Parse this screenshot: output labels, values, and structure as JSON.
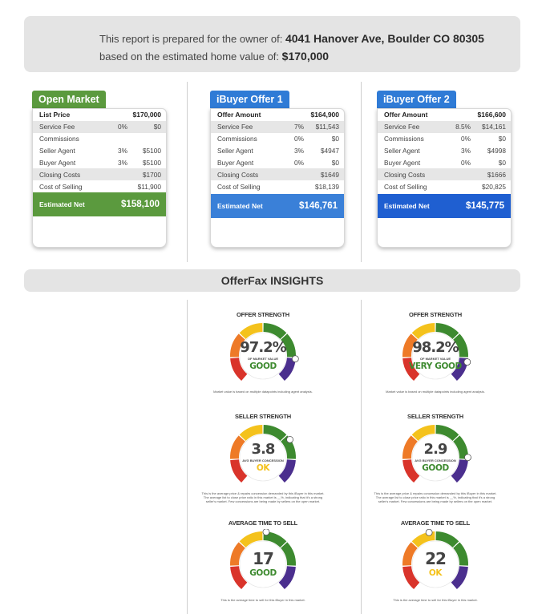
{
  "header": {
    "prepared_prefix": "This report is prepared for the owner of:",
    "address": "4041 Hanover Ave, Boulder CO 80305",
    "value_prefix": "based on the estimated home value of:",
    "home_value": "$170,000"
  },
  "colors": {
    "green": "#5b9a3e",
    "blue_tab": "#2f7bd6",
    "blue_net1": "#3a80d8",
    "blue_net2": "#1f5fd1",
    "gauge_red": "#d9342b",
    "gauge_orange": "#ee7a27",
    "gauge_yellow": "#f4c21c",
    "gauge_green": "#3d8a2f",
    "gauge_purple": "#4b2f8e"
  },
  "cards": [
    {
      "tab": "Open Market",
      "rows": [
        {
          "label": "List Price",
          "pct": "",
          "amount": "$170,000",
          "bold": true,
          "shade": false
        },
        {
          "label": "Service Fee",
          "pct": "0%",
          "amount": "$0",
          "bold": false,
          "shade": true
        },
        {
          "label": "Commissions",
          "pct": "",
          "amount": "",
          "bold": false,
          "shade": false
        },
        {
          "label": "Seller Agent",
          "pct": "3%",
          "amount": "$5100",
          "bold": false,
          "shade": false
        },
        {
          "label": "Buyer Agent",
          "pct": "3%",
          "amount": "$5100",
          "bold": false,
          "shade": false
        },
        {
          "label": "Closing Costs",
          "pct": "",
          "amount": "$1700",
          "bold": false,
          "shade": true
        },
        {
          "label": "Cost of Selling",
          "pct": "",
          "amount": "$11,900",
          "bold": false,
          "shade": false
        }
      ],
      "net_label": "Estimated Net",
      "net_amount": "$158,100"
    },
    {
      "tab": "iBuyer Offer 1",
      "rows": [
        {
          "label": "Offer Amount",
          "pct": "",
          "amount": "$164,900",
          "bold": true,
          "shade": false
        },
        {
          "label": "Service Fee",
          "pct": "7%",
          "amount": "$11,543",
          "bold": false,
          "shade": true
        },
        {
          "label": "Commissions",
          "pct": "0%",
          "amount": "$0",
          "bold": false,
          "shade": false
        },
        {
          "label": "Seller Agent",
          "pct": "3%",
          "amount": "$4947",
          "bold": false,
          "shade": false
        },
        {
          "label": "Buyer Agent",
          "pct": "0%",
          "amount": "$0",
          "bold": false,
          "shade": false
        },
        {
          "label": "Closing Costs",
          "pct": "",
          "amount": "$1649",
          "bold": false,
          "shade": true
        },
        {
          "label": "Cost of Selling",
          "pct": "",
          "amount": "$18,139",
          "bold": false,
          "shade": false
        }
      ],
      "net_label": "Estimated Net",
      "net_amount": "$146,761"
    },
    {
      "tab": "iBuyer Offer 2",
      "rows": [
        {
          "label": "Offer Amount",
          "pct": "",
          "amount": "$166,600",
          "bold": true,
          "shade": false
        },
        {
          "label": "Service Fee",
          "pct": "8.5%",
          "amount": "$14,161",
          "bold": false,
          "shade": true
        },
        {
          "label": "Commissions",
          "pct": "0%",
          "amount": "$0",
          "bold": false,
          "shade": false
        },
        {
          "label": "Seller Agent",
          "pct": "3%",
          "amount": "$4998",
          "bold": false,
          "shade": false
        },
        {
          "label": "Buyer Agent",
          "pct": "0%",
          "amount": "$0",
          "bold": false,
          "shade": false
        },
        {
          "label": "Closing Costs",
          "pct": "",
          "amount": "$1666",
          "bold": false,
          "shade": true
        },
        {
          "label": "Cost of Selling",
          "pct": "",
          "amount": "$20,825",
          "bold": false,
          "shade": false
        }
      ],
      "net_label": "Estimated Net",
      "net_amount": "$145,775"
    }
  ],
  "insights": {
    "title": "OfferFax INSIGHTS",
    "columns": [
      {
        "offer_strength": {
          "title": "OFFER STRENGTH",
          "value": "97.2%",
          "sub": "OF MARKET VALUE",
          "rating": "GOOD",
          "rating_color": "#3d8a2f",
          "level": 0.84,
          "note": "Market value is based on multiple datapoints including agent analysis."
        },
        "seller_strength": {
          "title": "SELLER STRENGTH",
          "value": "3.8",
          "sub": "AVG BUYER CONCESSION",
          "rating": "OK",
          "rating_color": "#f4c21c",
          "level": 0.7,
          "note": "This is the average price & repairs concession demanded by this iBuyer in this market. The average list to close price ratio in this market is __%, indicating that it's a strong seller's market. Few concessions are being made by sellers on the open market."
        },
        "avg_time": {
          "title": "AVERAGE TIME TO SELL",
          "value": "17",
          "sub": "",
          "rating": "GOOD",
          "rating_color": "#3d8a2f",
          "level": 0.52,
          "note": "This is the average time to sell for this iBuyer in this market."
        }
      },
      {
        "offer_strength": {
          "title": "OFFER STRENGTH",
          "value": "98.2%",
          "sub": "OF MARKET VALUE",
          "rating": "VERY GOOD",
          "rating_color": "#3d8a2f",
          "level": 0.86,
          "note": "Market value is based on multiple datapoints including agent analysis."
        },
        "seller_strength": {
          "title": "SELLER STRENGTH",
          "value": "2.9",
          "sub": "AVG BUYER CONCESSION",
          "rating": "GOOD",
          "rating_color": "#3d8a2f",
          "level": 0.82,
          "note": "This is the average price & repairs concession demanded by this iBuyer in this market. The average list to close price ratio in this market is __%, indicating that it's a strong seller's market. Few concessions are being made by sellers on the open market."
        },
        "avg_time": {
          "title": "AVERAGE TIME TO SELL",
          "value": "22",
          "sub": "",
          "rating": "OK",
          "rating_color": "#f4c21c",
          "level": 0.46,
          "note": "This is the average time to sell for this iBuyer in this market."
        }
      }
    ]
  }
}
